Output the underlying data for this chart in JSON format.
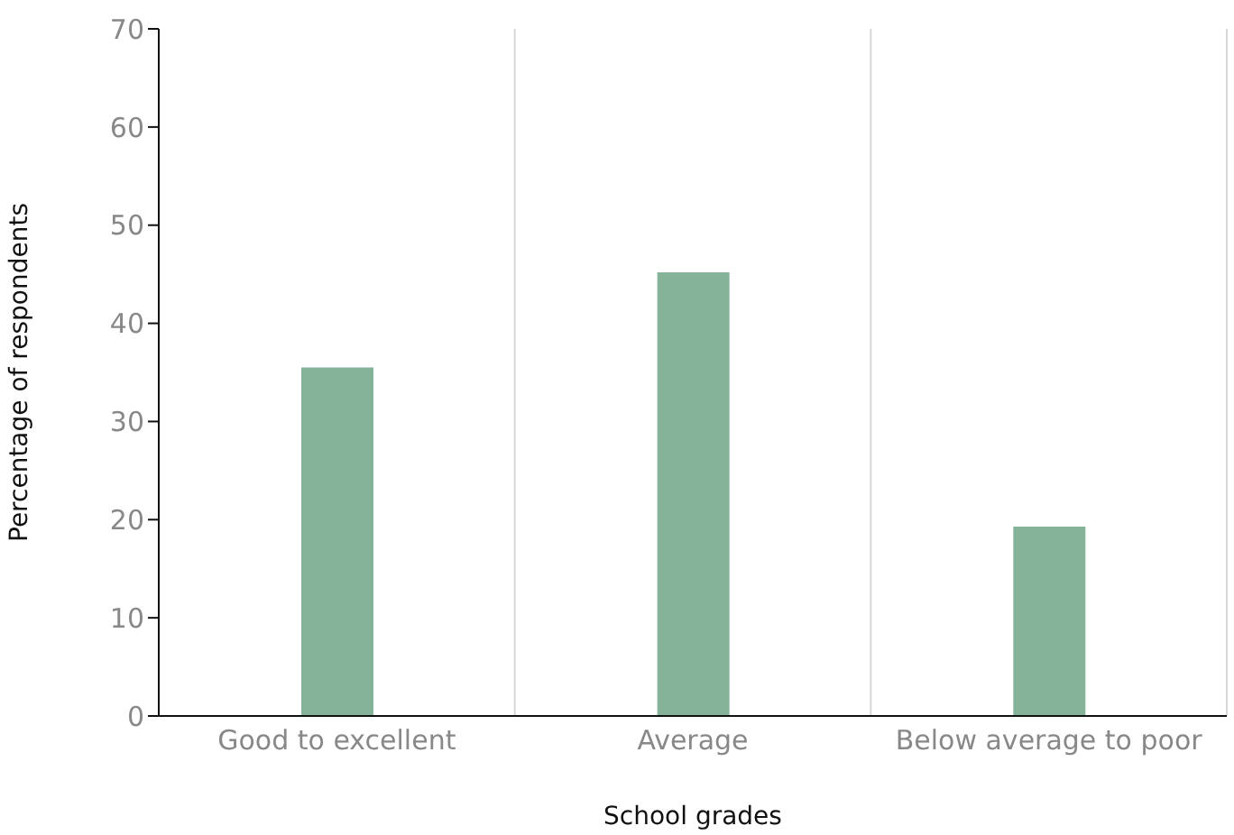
{
  "chart_data": {
    "type": "bar",
    "xlabel": "School grades",
    "ylabel": "Percentage of respondents",
    "categories": [
      "Good to excellent",
      "Average",
      "Below average to poor"
    ],
    "values": [
      35.5,
      45.2,
      19.3
    ],
    "color": "#84b39a",
    "ylim": [
      0,
      70
    ],
    "yticks": [
      0,
      10,
      20,
      30,
      40,
      50,
      60,
      70
    ],
    "grid": "x"
  }
}
